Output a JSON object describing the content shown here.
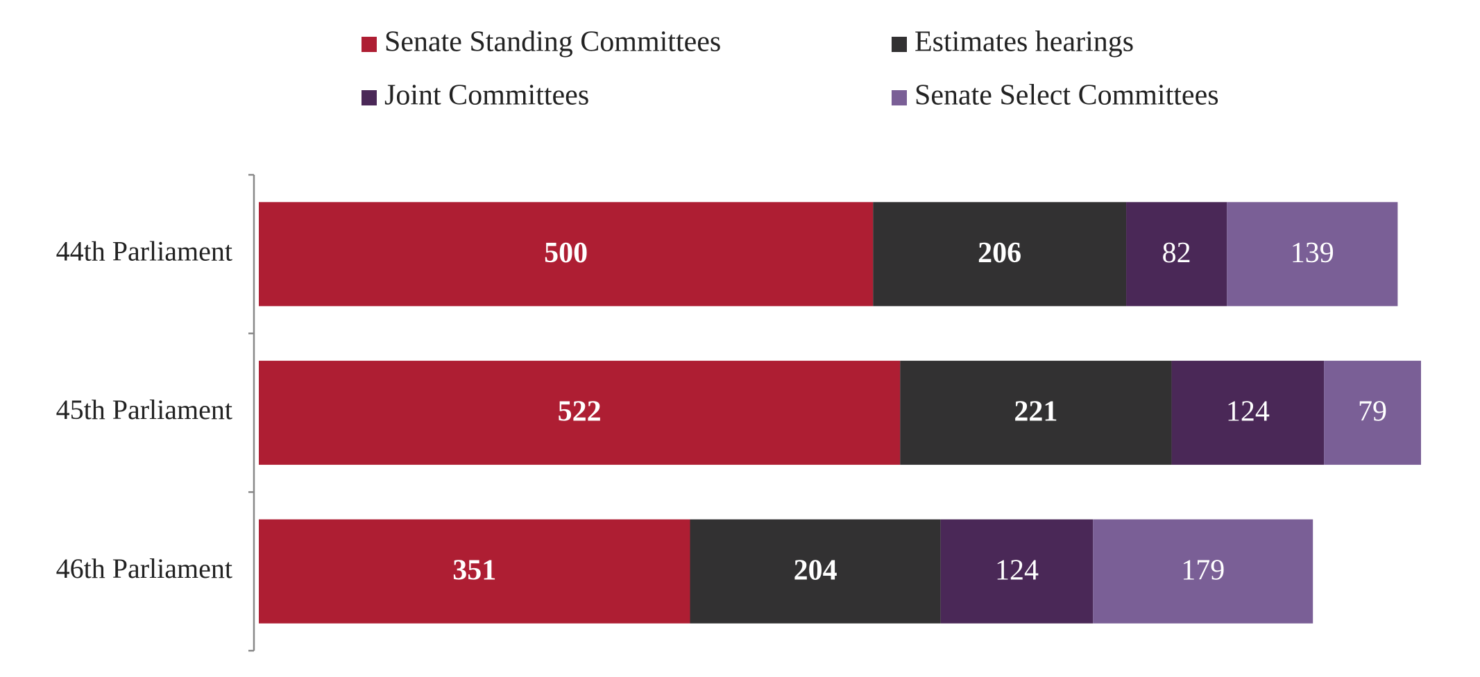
{
  "chart_data": {
    "type": "stacked-bar-horizontal",
    "categories": [
      "44th Parliament",
      "45th Parliament",
      "46th Parliament"
    ],
    "series": [
      {
        "name": "Senate Standing Committees",
        "color": "#ae1e33",
        "values": [
          500,
          522,
          351
        ]
      },
      {
        "name": "Estimates hearings",
        "color": "#323132",
        "values": [
          206,
          221,
          204
        ]
      },
      {
        "name": "Joint Committees",
        "color": "#4a2857",
        "values": [
          82,
          124,
          124
        ]
      },
      {
        "name": "Senate Select Committees",
        "color": "#7a5f96",
        "values": [
          139,
          79,
          179
        ]
      }
    ]
  }
}
